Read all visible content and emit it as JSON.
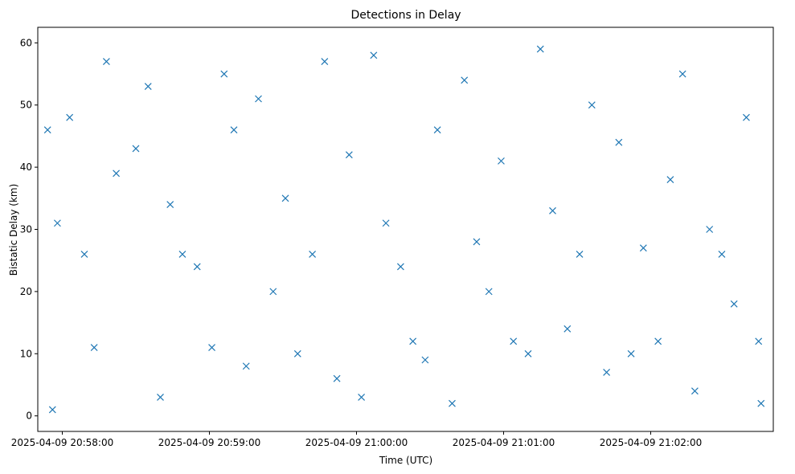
{
  "chart_data": {
    "type": "scatter",
    "title": "Detections in Delay",
    "xlabel": "Time (UTC)",
    "ylabel": "Bistatic Delay (km)",
    "x_ticks": [
      "2025-04-09 20:58:00",
      "2025-04-09 20:59:00",
      "2025-04-09 21:00:00",
      "2025-04-09 21:01:00",
      "2025-04-09 21:02:00"
    ],
    "xlim": [
      "2025-04-09 20:57:50",
      "2025-04-09 21:02:50"
    ],
    "y_ticks": [
      0,
      10,
      20,
      30,
      40,
      50,
      60
    ],
    "ylim": [
      -2.5,
      62.5
    ],
    "grid": false,
    "marker": "x",
    "color": "#1f77b4",
    "series": [
      {
        "name": "",
        "x": [
          "2025-04-09 20:57:54",
          "2025-04-09 20:57:56",
          "2025-04-09 20:57:58",
          "2025-04-09 20:58:03",
          "2025-04-09 20:58:09",
          "2025-04-09 20:58:13",
          "2025-04-09 20:58:18",
          "2025-04-09 20:58:22",
          "2025-04-09 20:58:30",
          "2025-04-09 20:58:35",
          "2025-04-09 20:58:40",
          "2025-04-09 20:58:44",
          "2025-04-09 20:58:49",
          "2025-04-09 20:58:55",
          "2025-04-09 20:59:01",
          "2025-04-09 20:59:06",
          "2025-04-09 20:59:10",
          "2025-04-09 20:59:15",
          "2025-04-09 20:59:20",
          "2025-04-09 20:59:26",
          "2025-04-09 20:59:31",
          "2025-04-09 20:59:36",
          "2025-04-09 20:59:42",
          "2025-04-09 20:59:47",
          "2025-04-09 20:59:52",
          "2025-04-09 20:59:57",
          "2025-04-09 21:00:02",
          "2025-04-09 21:00:07",
          "2025-04-09 21:00:12",
          "2025-04-09 21:00:18",
          "2025-04-09 21:00:23",
          "2025-04-09 21:00:28",
          "2025-04-09 21:00:33",
          "2025-04-09 21:00:39",
          "2025-04-09 21:00:44",
          "2025-04-09 21:00:49",
          "2025-04-09 21:00:54",
          "2025-04-09 21:00:59",
          "2025-04-09 21:01:04",
          "2025-04-09 21:01:10",
          "2025-04-09 21:01:15",
          "2025-04-09 21:01:20",
          "2025-04-09 21:01:26",
          "2025-04-09 21:01:31",
          "2025-04-09 21:01:36",
          "2025-04-09 21:01:42",
          "2025-04-09 21:01:47",
          "2025-04-09 21:01:52",
          "2025-04-09 21:01:57",
          "2025-04-09 21:02:03",
          "2025-04-09 21:02:08",
          "2025-04-09 21:02:13",
          "2025-04-09 21:02:18",
          "2025-04-09 21:02:24",
          "2025-04-09 21:02:29",
          "2025-04-09 21:02:34",
          "2025-04-09 21:02:39",
          "2025-04-09 21:02:44",
          "2025-04-09 21:02:45"
        ],
        "y": [
          46,
          1,
          31,
          48,
          26,
          11,
          57,
          39,
          43,
          53,
          3,
          34,
          26,
          24,
          11,
          55,
          46,
          8,
          51,
          20,
          35,
          10,
          26,
          57,
          6,
          42,
          3,
          58,
          31,
          24,
          12,
          9,
          46,
          2,
          54,
          28,
          20,
          41,
          12,
          10,
          59,
          33,
          14,
          26,
          50,
          7,
          44,
          10,
          27,
          12,
          38,
          55,
          4,
          30,
          26,
          18,
          48,
          12,
          2
        ]
      }
    ]
  }
}
